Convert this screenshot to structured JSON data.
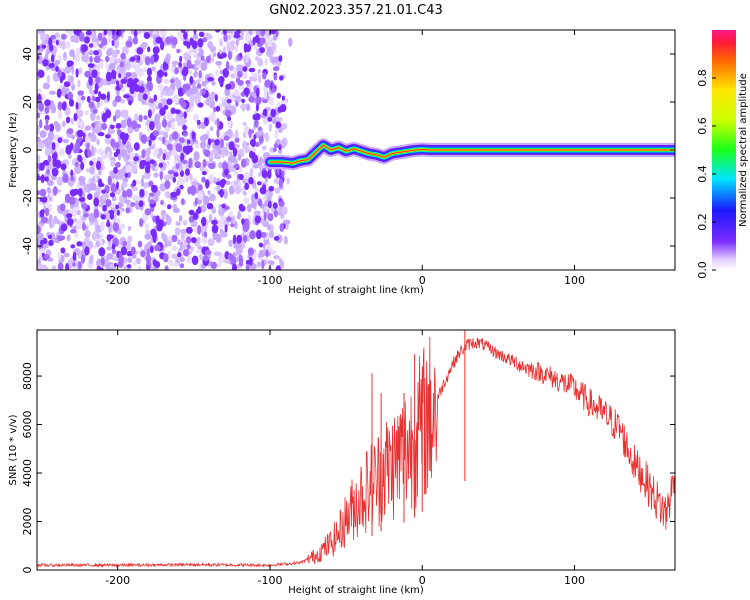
{
  "figure": {
    "title": "GN02.2023.357.21.01.C43"
  },
  "chart_data": [
    {
      "type": "heatmap",
      "title": "GN02.2023.357.21.01.C43",
      "xlabel": "Height of straight line (km)",
      "ylabel": "Frequency (Hz)",
      "xlim": [
        -253,
        166
      ],
      "ylim": [
        -50,
        50
      ],
      "x_ticks": [
        -200,
        -100,
        0,
        100
      ],
      "y_ticks": [
        -40,
        -20,
        0,
        20,
        40
      ],
      "noise_region_x": [
        -253,
        -86
      ],
      "ridge": {
        "x": [
          -100,
          -92,
          -85,
          -80,
          -75,
          -70,
          -65,
          -60,
          -55,
          -50,
          -45,
          -40,
          -35,
          -30,
          -25,
          -20,
          -15,
          -10,
          -5,
          0,
          5,
          10,
          20,
          166
        ],
        "y": [
          -5,
          -5,
          -5.5,
          -4.5,
          -4,
          -1,
          2,
          0,
          1,
          -0.5,
          0.5,
          -0.5,
          -1.5,
          -2,
          -3,
          -1.5,
          -1,
          -0.5,
          0,
          0.2,
          0,
          0,
          0,
          0
        ]
      },
      "colorbar": {
        "label": "Normalized spectral amplitude",
        "range": [
          0,
          1
        ],
        "ticks": [
          0.0,
          0.2,
          0.4,
          0.6,
          0.8
        ],
        "tick_labels": [
          "0.0",
          "0.2",
          "0.4",
          "0.6",
          "0.8"
        ],
        "colormap": "rainbow"
      },
      "colors": {
        "noise": "#7a2bff",
        "ridge_core": "#ff2a2a"
      }
    },
    {
      "type": "line",
      "xlabel": "Height of straight line (km)",
      "ylabel": "SNR (10 * v/v)",
      "xlim": [
        -253,
        166
      ],
      "ylim": [
        0,
        9900
      ],
      "x_ticks": [
        -200,
        -100,
        0,
        100
      ],
      "y_ticks": [
        0,
        2000,
        4000,
        6000,
        8000
      ],
      "series": [
        {
          "color": "#e83030",
          "x": [
            -253,
            -200,
            -150,
            -100,
            -80,
            -70,
            -60,
            -55,
            -50,
            -45,
            -40,
            -35,
            -30,
            -25,
            -20,
            -15,
            -10,
            -5,
            0,
            5,
            10,
            15,
            20,
            25,
            30,
            35,
            40,
            50,
            60,
            70,
            80,
            90,
            100,
            110,
            120,
            130,
            135,
            140,
            145,
            150,
            155,
            160,
            166
          ],
          "y": [
            200,
            200,
            220,
            200,
            300,
            600,
            1100,
            1500,
            2100,
            2600,
            3100,
            3400,
            3700,
            4200,
            4300,
            4700,
            5000,
            5400,
            6000,
            6400,
            7100,
            7800,
            8500,
            9000,
            9300,
            9400,
            9300,
            8900,
            8600,
            8300,
            8100,
            7800,
            7500,
            6900,
            6400,
            5800,
            5000,
            4300,
            3900,
            3300,
            2800,
            2300,
            3800
          ]
        }
      ],
      "spikes": [
        {
          "x": -33,
          "y": 8100
        },
        {
          "x": -27,
          "y": 7300
        },
        {
          "x": -12,
          "y": 7300
        },
        {
          "x": -5,
          "y": 8900
        },
        {
          "x": 0,
          "y": 7100
        },
        {
          "x": 28,
          "y": 9900
        }
      ]
    }
  ]
}
